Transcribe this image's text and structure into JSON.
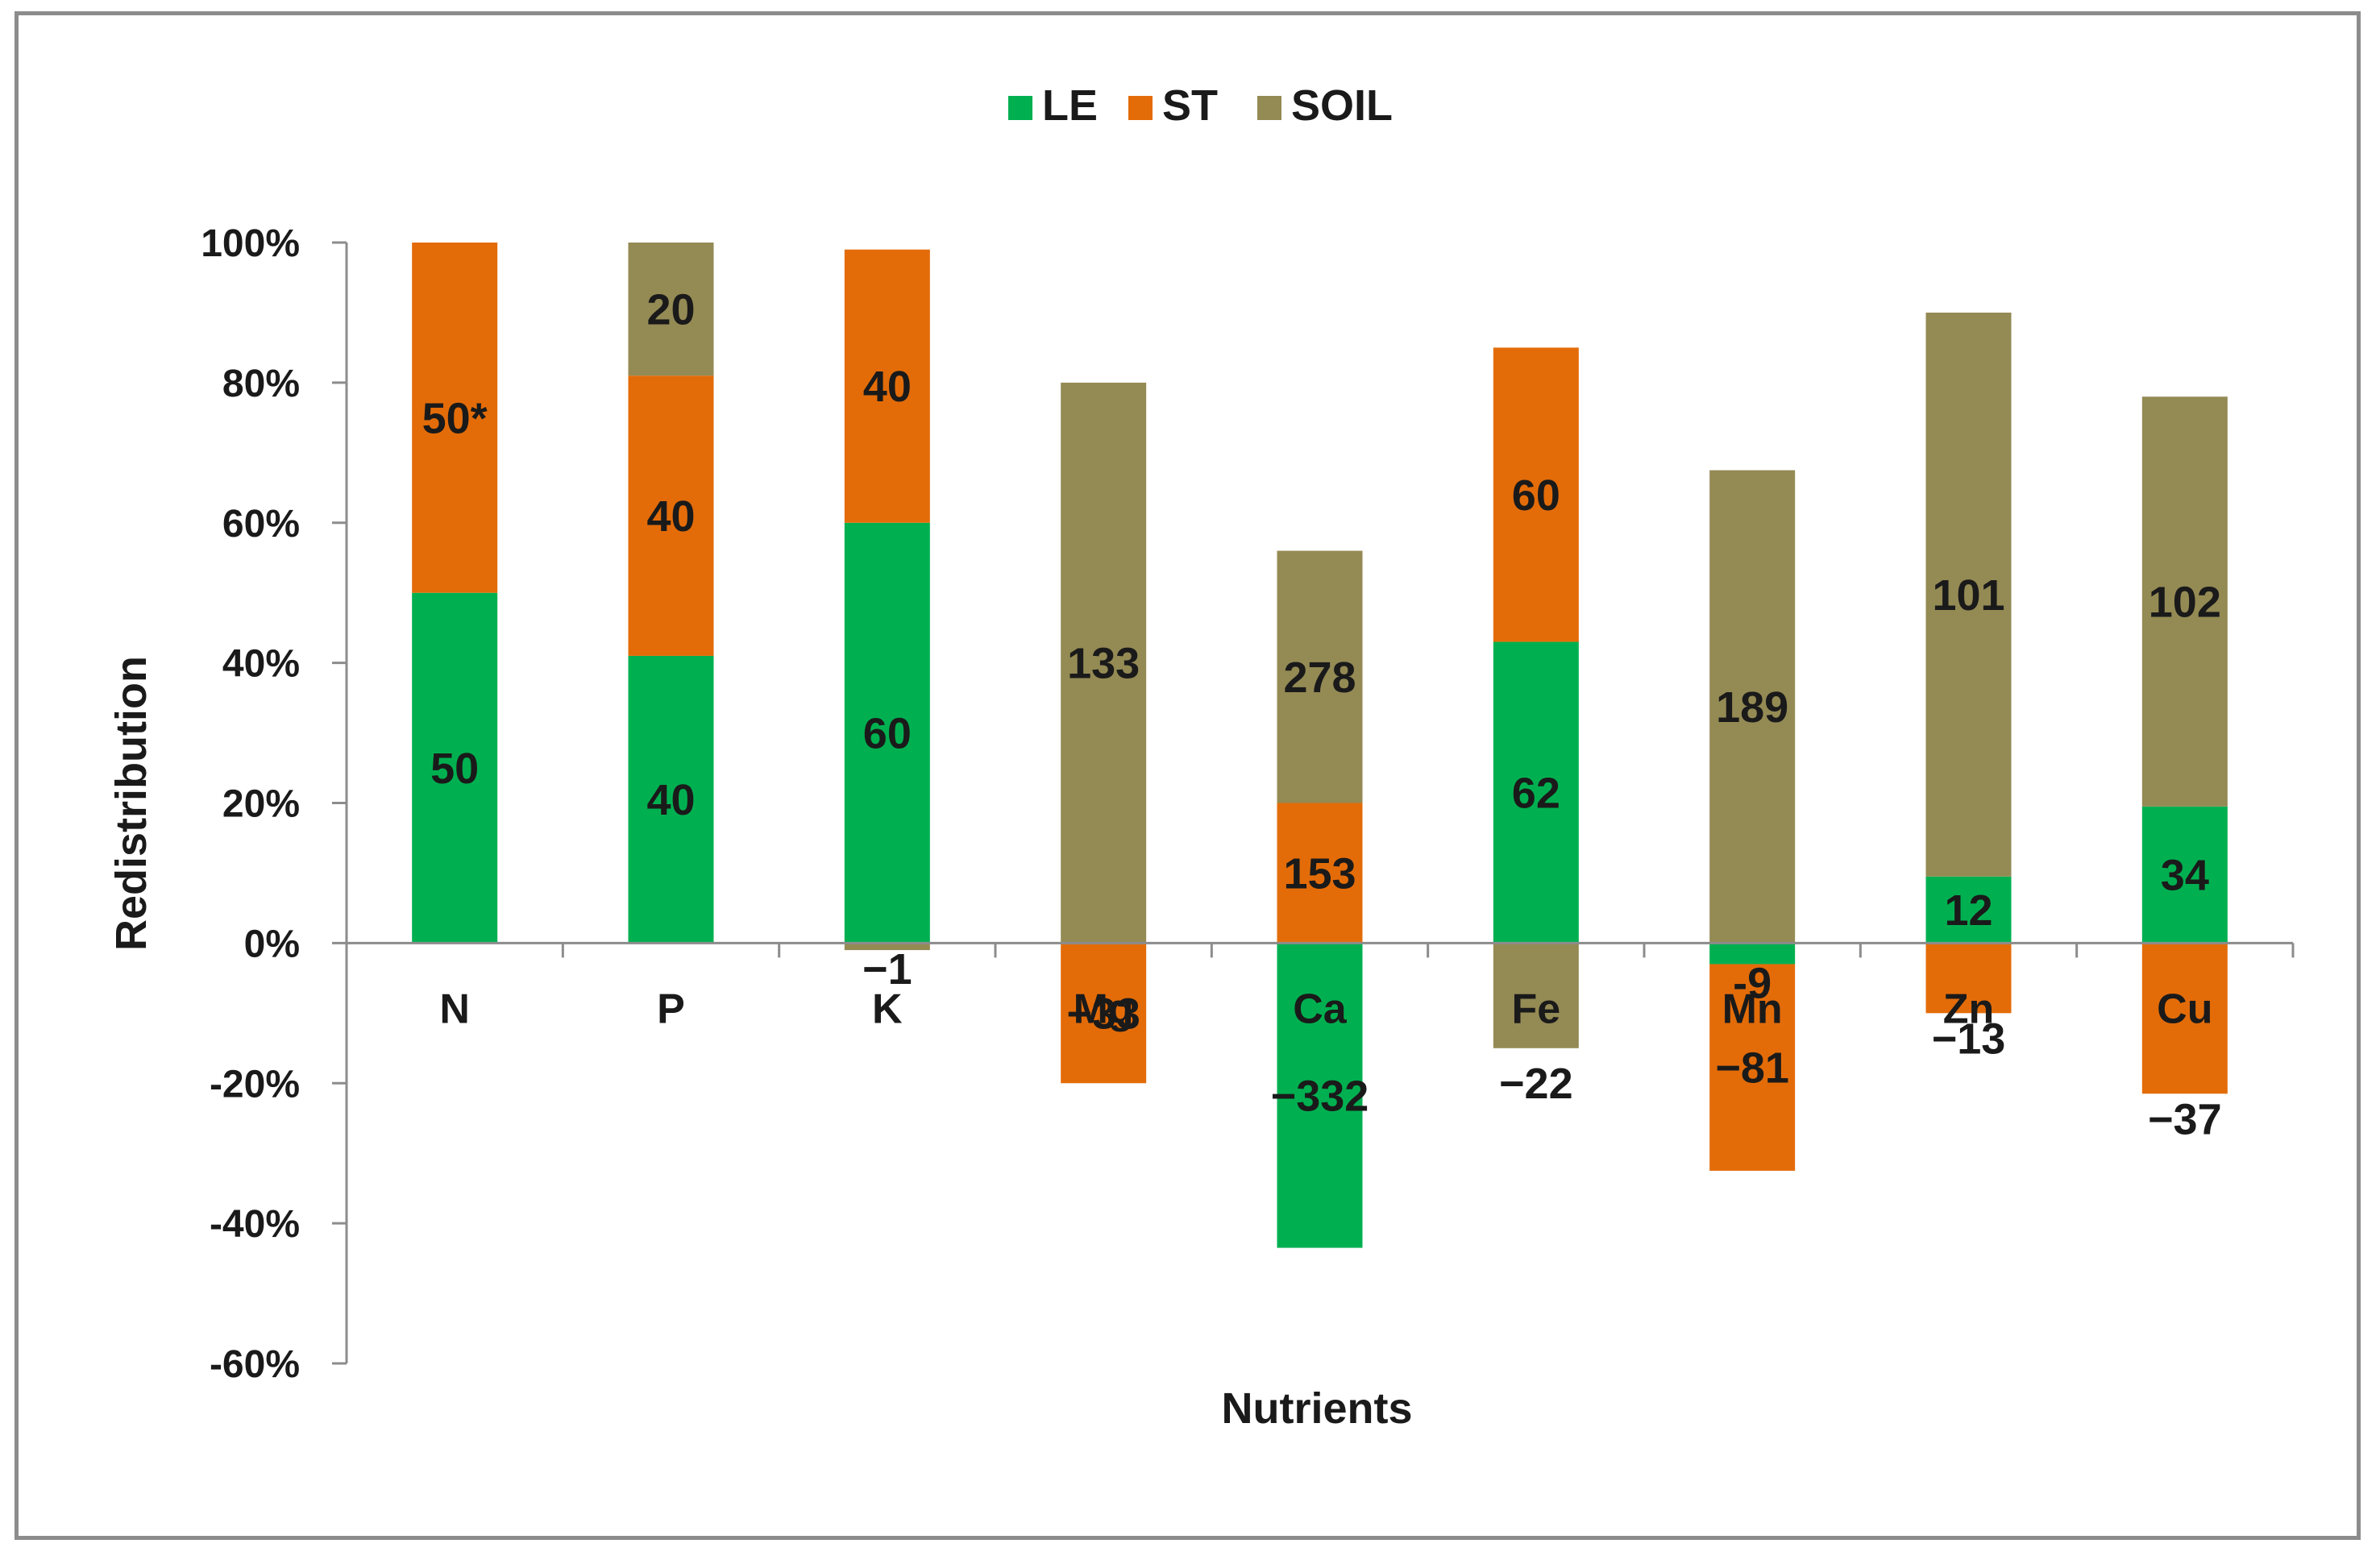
{
  "chart_data": {
    "type": "bar",
    "stacked": true,
    "title": "",
    "xlabel": "Nutrients",
    "ylabel": "Redistribution",
    "ylim": [
      -60,
      100
    ],
    "yticks": [
      100,
      80,
      60,
      40,
      20,
      0,
      -20,
      -40,
      -60
    ],
    "ytick_labels": [
      "100%",
      "80%",
      "60%",
      "40%",
      "20%",
      "0%",
      "-20%",
      "-40%",
      "-60%"
    ],
    "legend": {
      "position": "top-center"
    },
    "categories": [
      "N",
      "P",
      "K",
      "Mg",
      "Ca",
      "Fe",
      "Mn",
      "Zn",
      "Cu"
    ],
    "series": [
      {
        "name": "LE",
        "color": "#00b050",
        "values": [
          50,
          41,
          60,
          0,
          -43.5,
          43,
          -3,
          9.5,
          19.5
        ],
        "labels": [
          "50",
          "40",
          "60",
          "",
          "−332",
          "62",
          "-9",
          "12",
          "34"
        ]
      },
      {
        "name": "ST",
        "color": "#e36c09",
        "values": [
          50,
          40,
          39,
          -20,
          20,
          42,
          -29.5,
          -10,
          -21.5
        ],
        "labels": [
          "50*",
          "40",
          "40",
          "−33",
          "153",
          "60",
          "−81",
          "−13",
          "−37"
        ]
      },
      {
        "name": "SOIL",
        "color": "#948a54",
        "values": [
          0,
          19,
          -1,
          80,
          36,
          -15,
          67.5,
          80.5,
          58.5
        ],
        "labels": [
          "",
          "20",
          "−1",
          "133",
          "278",
          "−22",
          "189",
          "101",
          "102"
        ]
      }
    ]
  }
}
